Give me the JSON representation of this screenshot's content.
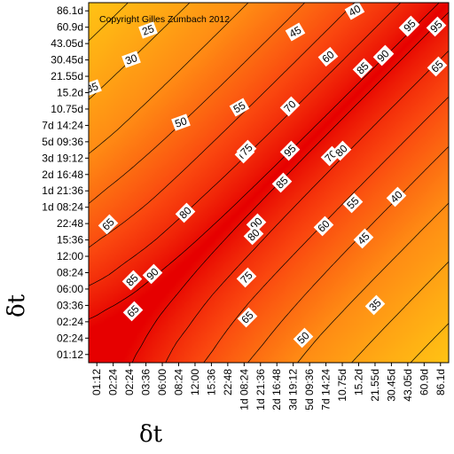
{
  "chart_data": {
    "type": "heatmap",
    "subtype": "contour",
    "ticks": [
      "01:12",
      "02:24",
      "02:24",
      "03:36",
      "06:00",
      "08:24",
      "12:00",
      "15:36",
      "22:48",
      "1d 08:24",
      "1d 21:36",
      "2d 16:48",
      "3d 19:12",
      "5d 09:36",
      "7d 14:24",
      "10.75d",
      "15.2d",
      "21.55d",
      "30.45d",
      "43.05d",
      "60.9d",
      "86.1d"
    ],
    "xlabel": "δt",
    "ylabel": "δt",
    "copyright": "Copyright Gilles Zumbach 2012",
    "contour_levels": [
      25,
      30,
      35,
      40,
      45,
      50,
      55,
      60,
      65,
      70,
      75,
      80,
      85,
      90,
      95
    ],
    "color_scale": {
      "low": "#ffff99",
      "mid1": "#ffd22a",
      "mid2": "#ff8a1c",
      "high": "#ee0000"
    },
    "grid": false,
    "contour_labels": [
      {
        "text": "25"
      },
      {
        "text": "30"
      },
      {
        "text": "35"
      },
      {
        "text": "40"
      },
      {
        "text": "45"
      },
      {
        "text": "50"
      },
      {
        "text": "55"
      },
      {
        "text": "60"
      },
      {
        "text": "65"
      },
      {
        "text": "70"
      },
      {
        "text": "75"
      },
      {
        "text": "80"
      },
      {
        "text": "85"
      },
      {
        "text": "90"
      },
      {
        "text": "95"
      },
      {
        "text": "65"
      },
      {
        "text": "85"
      },
      {
        "text": "90"
      },
      {
        "text": "95"
      },
      {
        "text": "65"
      },
      {
        "text": "70"
      },
      {
        "text": "80"
      },
      {
        "text": "55"
      },
      {
        "text": "60"
      },
      {
        "text": "95"
      },
      {
        "text": "85"
      },
      {
        "text": "90"
      },
      {
        "text": "80"
      },
      {
        "text": "65"
      },
      {
        "text": "85"
      },
      {
        "text": "90"
      },
      {
        "text": "75"
      },
      {
        "text": "65"
      },
      {
        "text": "50"
      },
      {
        "text": "45"
      },
      {
        "text": "40"
      },
      {
        "text": "35"
      }
    ]
  }
}
